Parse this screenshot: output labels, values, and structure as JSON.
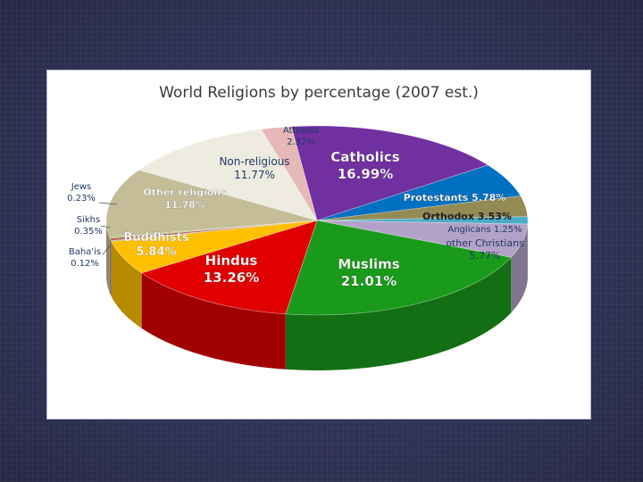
{
  "colors": {
    "background": "#34365a",
    "card": "#ffffff",
    "label_dark": "#1f3864",
    "label_light": "#ffffff"
  },
  "chart_data": {
    "type": "pie",
    "title": "World Religions by percentage (2007 est.)",
    "slices": [
      {
        "label": "Catholics",
        "value_text": "16.99%",
        "value": 16.99,
        "color": "#7030a0"
      },
      {
        "label": "Protestants",
        "value_text": "5.78%",
        "value": 5.78,
        "color": "#0070c0"
      },
      {
        "label": "Orthodox",
        "value_text": "3.53%",
        "value": 3.53,
        "color": "#948a54"
      },
      {
        "label": "Anglicans",
        "value_text": "1.25%",
        "value": 1.25,
        "color": "#4bacc6"
      },
      {
        "label": "other Christians",
        "value_text": "5.77%",
        "value": 5.77,
        "color": "#b3a2c7"
      },
      {
        "label": "Muslims",
        "value_text": "21.01%",
        "value": 21.01,
        "color": "#1a9a1a"
      },
      {
        "label": "Hindus",
        "value_text": "13.26%",
        "value": 13.26,
        "color": "#e00000"
      },
      {
        "label": "Buddhists",
        "value_text": "5.84%",
        "value": 5.84,
        "color": "#ffc000"
      },
      {
        "label": "Baha'is",
        "value_text": "0.12%",
        "value": 0.12,
        "color": "#4f81bd"
      },
      {
        "label": "Sikhs",
        "value_text": "0.35%",
        "value": 0.35,
        "color": "#c0504d"
      },
      {
        "label": "Jews",
        "value_text": "0.23%",
        "value": 0.23,
        "color": "#9bbb59"
      },
      {
        "label": "Other religions",
        "value_text": "11.78%",
        "value": 11.78,
        "color": "#c4bd97"
      },
      {
        "label": "Non-religious",
        "value_text": "11.77%",
        "value": 11.77,
        "color": "#eeece1"
      },
      {
        "label": "Athiests",
        "value_text": "2.32%",
        "value": 2.32,
        "color": "#e6b9b8"
      }
    ]
  }
}
